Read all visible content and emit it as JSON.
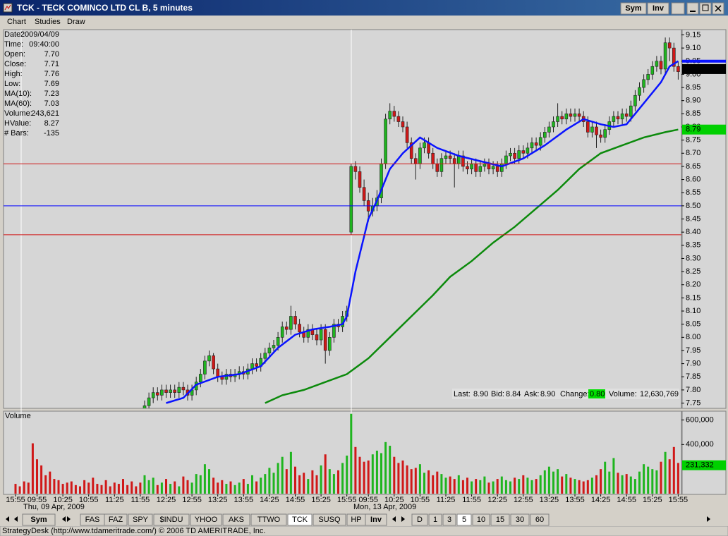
{
  "window": {
    "title": "TCK - TECK COMINCO LTD CL B, 5 minutes",
    "buttons": [
      "Sym",
      "Inv"
    ]
  },
  "menu": [
    "Chart",
    "Studies",
    "Draw"
  ],
  "info_panel": [
    {
      "label": "Date:",
      "value": "2009/04/09"
    },
    {
      "label": "Time:",
      "value": "09:40:00"
    },
    {
      "label": "Open:",
      "value": "7.70"
    },
    {
      "label": "Close:",
      "value": "7.71"
    },
    {
      "label": "High:",
      "value": "7.76"
    },
    {
      "label": "Low:",
      "value": "7.69"
    },
    {
      "label": "MA(10):",
      "value": "7.23",
      "color": "#0000ff"
    },
    {
      "label": "MA(60):",
      "value": "7.03",
      "color": "#008000"
    },
    {
      "label": "Volume:",
      "value": "243,621"
    },
    {
      "label": "HValue:",
      "value": "8.27"
    },
    {
      "label": "# Bars:",
      "value": "-135"
    }
  ],
  "quote": [
    {
      "label": "Last:",
      "value": "8.90"
    },
    {
      "label": "Bid:",
      "value": "8.84"
    },
    {
      "label": "Ask:",
      "value": "8.90"
    },
    {
      "label": "Change:",
      "value": "0.80",
      "color": "#00e000"
    },
    {
      "label": "Volume:",
      "value": "12,630,769"
    }
  ],
  "tabs": [
    "Sym",
    "FAS",
    "FAZ",
    "SPY",
    "$INDU",
    "YHOO",
    "AKS",
    "TTWO",
    "TCK",
    "SUSQ",
    "HP",
    "Inv",
    "D",
    "1",
    "3",
    "5",
    "10",
    "15",
    "30",
    "60"
  ],
  "status_bar": "StrategyDesk (http://www.tdameritrade.com/) © 2006 TD AMERITRADE, Inc.",
  "chart_data": [
    {
      "type": "candlestick",
      "categories": [
        "15:55",
        null,
        null,
        null,
        null,
        "09:55",
        null,
        null,
        null,
        null,
        null,
        "10:25",
        null,
        null,
        null,
        null,
        null,
        "10:55",
        null,
        null,
        null,
        null,
        null,
        "11:25",
        null,
        null,
        null,
        null,
        null,
        "11:55",
        null,
        null,
        null,
        null,
        null,
        "12:25",
        null,
        null,
        null,
        null,
        null,
        "12:55",
        null,
        null,
        null,
        null,
        null,
        "13:25",
        null,
        null,
        null,
        null,
        null,
        "13:55",
        null,
        null,
        null,
        null,
        null,
        "14:25",
        null,
        null,
        null,
        null,
        null,
        "14:55",
        null,
        null,
        null,
        null,
        null,
        "15:25",
        null,
        null,
        null,
        null,
        null,
        "15:55",
        null,
        null,
        null,
        null,
        "09:55",
        null,
        null,
        null,
        null,
        null,
        "10:25",
        null,
        null,
        null,
        null,
        null,
        "10:55",
        null,
        null,
        null,
        null,
        null,
        "11:25",
        null,
        null,
        null,
        null,
        null,
        "11:55",
        null,
        null,
        null,
        null,
        null,
        "12:25",
        null,
        null,
        null,
        null,
        null,
        "12:55",
        null,
        null,
        null,
        null,
        null,
        "13:25",
        null,
        null,
        null,
        null,
        null,
        "13:55",
        null,
        null,
        null,
        null,
        null,
        "14:25",
        null,
        null,
        null,
        null,
        null,
        "14:55",
        null,
        null,
        null,
        null,
        null,
        "15:25",
        null,
        null,
        null,
        null,
        null,
        "15:55"
      ],
      "date_labels": [
        "Thu, 09 Apr, 2009",
        "Mon, 13 Apr, 2009"
      ],
      "open": [
        null,
        null,
        null,
        null,
        null,
        null,
        null,
        null,
        null,
        null,
        null,
        null,
        null,
        null,
        null,
        null,
        null,
        null,
        null,
        null,
        null,
        null,
        null,
        null,
        null,
        null,
        null,
        null,
        null,
        null,
        7.72,
        7.74,
        7.77,
        7.79,
        7.78,
        7.8,
        7.79,
        7.8,
        7.79,
        7.81,
        7.8,
        7.78,
        7.8,
        7.83,
        7.86,
        7.91,
        7.93,
        7.88,
        7.85,
        7.84,
        7.86,
        7.85,
        7.86,
        7.87,
        7.86,
        7.88,
        7.9,
        7.89,
        7.92,
        7.94,
        7.96,
        7.97,
        8.0,
        8.04,
        8.03,
        8.08,
        8.05,
        8.02,
        8.0,
        8.03,
        8.01,
        7.99,
        8.03,
        7.95,
        8.0,
        8.05,
        8.04,
        8.08,
        8.4,
        8.65,
        8.63,
        8.57,
        8.52,
        8.48,
        8.5,
        8.53,
        8.66,
        8.83,
        8.86,
        8.84,
        8.82,
        8.8,
        8.74,
        8.68,
        8.66,
        8.72,
        8.74,
        8.7,
        8.66,
        8.63,
        8.68,
        8.69,
        8.68,
        8.66,
        8.69,
        8.65,
        8.64,
        8.66,
        8.63,
        8.65,
        8.66,
        8.64,
        8.65,
        8.63,
        8.66,
        8.69,
        8.7,
        8.68,
        8.71,
        8.7,
        8.72,
        8.74,
        8.73,
        8.76,
        8.78,
        8.8,
        8.82,
        8.84,
        8.83,
        8.85,
        8.84,
        8.85,
        8.84,
        8.82,
        8.78,
        8.8,
        8.77,
        8.76,
        8.79,
        8.82,
        8.84,
        8.83,
        8.85,
        8.84,
        8.88,
        8.92,
        8.95,
        8.98,
        9.0,
        9.03,
        9.05,
        9.02,
        9.12,
        9.1,
        9.03
      ],
      "high": [
        null,
        null,
        null,
        null,
        null,
        null,
        null,
        null,
        null,
        null,
        null,
        null,
        null,
        null,
        null,
        null,
        null,
        null,
        null,
        null,
        null,
        null,
        null,
        null,
        null,
        null,
        null,
        null,
        null,
        null,
        7.76,
        7.79,
        7.81,
        7.81,
        7.82,
        7.82,
        7.82,
        7.82,
        7.83,
        7.83,
        7.82,
        7.82,
        7.85,
        7.88,
        7.93,
        7.95,
        7.94,
        7.9,
        7.87,
        7.88,
        7.88,
        7.88,
        7.89,
        7.89,
        7.9,
        7.92,
        7.92,
        7.94,
        7.96,
        7.98,
        7.99,
        8.02,
        8.06,
        8.06,
        8.12,
        8.1,
        8.07,
        8.04,
        8.05,
        8.05,
        8.03,
        8.05,
        8.05,
        8.02,
        8.07,
        8.07,
        8.1,
        8.12,
        8.66,
        8.67,
        8.65,
        8.6,
        8.55,
        8.53,
        8.56,
        8.68,
        8.85,
        8.89,
        8.88,
        8.86,
        8.84,
        8.82,
        8.76,
        8.7,
        8.74,
        8.76,
        8.76,
        8.72,
        8.68,
        8.7,
        8.71,
        8.71,
        8.7,
        8.71,
        8.71,
        8.67,
        8.68,
        8.68,
        8.67,
        8.68,
        8.68,
        8.67,
        8.67,
        8.68,
        8.71,
        8.72,
        8.72,
        8.73,
        8.73,
        8.74,
        8.76,
        8.76,
        8.78,
        8.8,
        8.82,
        8.84,
        8.89,
        8.86,
        8.87,
        8.87,
        8.87,
        8.87,
        8.86,
        8.84,
        8.82,
        8.82,
        8.79,
        8.81,
        8.84,
        8.86,
        8.86,
        8.87,
        8.87,
        8.9,
        8.94,
        8.97,
        9.0,
        9.02,
        9.05,
        9.07,
        9.07,
        9.14,
        9.14,
        9.12,
        9.05
      ],
      "low": [
        null,
        null,
        null,
        null,
        null,
        null,
        null,
        null,
        null,
        null,
        null,
        null,
        null,
        null,
        null,
        null,
        null,
        null,
        null,
        null,
        null,
        null,
        null,
        null,
        null,
        null,
        null,
        null,
        null,
        null,
        7.7,
        7.72,
        7.75,
        7.76,
        7.76,
        7.77,
        7.77,
        7.77,
        7.77,
        7.78,
        7.76,
        7.76,
        7.78,
        7.81,
        7.84,
        7.89,
        7.86,
        7.83,
        7.82,
        7.82,
        7.83,
        7.83,
        7.84,
        7.84,
        7.84,
        7.86,
        7.87,
        7.87,
        7.9,
        7.92,
        7.94,
        7.95,
        7.98,
        8.01,
        8.01,
        8.03,
        8.0,
        7.98,
        7.98,
        7.99,
        7.97,
        7.97,
        7.9,
        7.93,
        7.98,
        8.02,
        8.02,
        8.06,
        8.39,
        8.6,
        8.55,
        8.5,
        8.44,
        8.46,
        8.48,
        8.51,
        8.64,
        8.81,
        8.82,
        8.8,
        8.78,
        8.72,
        8.66,
        8.6,
        8.64,
        8.7,
        8.68,
        8.64,
        8.61,
        8.61,
        8.66,
        8.66,
        8.57,
        8.64,
        8.63,
        8.62,
        8.62,
        8.61,
        8.61,
        8.63,
        8.62,
        8.62,
        8.61,
        8.61,
        8.64,
        8.67,
        8.66,
        8.66,
        8.68,
        8.68,
        8.7,
        8.71,
        8.71,
        8.74,
        8.76,
        8.78,
        8.8,
        8.81,
        8.81,
        8.82,
        8.82,
        8.82,
        8.8,
        8.76,
        8.76,
        8.72,
        8.74,
        8.74,
        8.77,
        8.8,
        8.81,
        8.81,
        8.82,
        8.82,
        8.86,
        8.9,
        8.93,
        8.96,
        8.98,
        9.01,
        9.0,
        9.0,
        9.05,
        9.01,
        8.98
      ],
      "close": [
        null,
        null,
        null,
        null,
        null,
        null,
        null,
        null,
        null,
        null,
        null,
        null,
        null,
        null,
        null,
        null,
        null,
        null,
        null,
        null,
        null,
        null,
        null,
        null,
        null,
        null,
        null,
        null,
        null,
        null,
        7.74,
        7.77,
        7.79,
        7.78,
        7.8,
        7.79,
        7.8,
        7.79,
        7.81,
        7.8,
        7.78,
        7.8,
        7.83,
        7.86,
        7.91,
        7.93,
        7.88,
        7.85,
        7.84,
        7.86,
        7.85,
        7.86,
        7.87,
        7.86,
        7.88,
        7.9,
        7.89,
        7.92,
        7.94,
        7.96,
        7.97,
        8.0,
        8.04,
        8.03,
        8.08,
        8.05,
        8.02,
        8.0,
        8.03,
        8.01,
        7.99,
        8.03,
        7.95,
        8.0,
        8.05,
        8.04,
        8.08,
        8.1,
        8.65,
        8.63,
        8.57,
        8.52,
        8.48,
        8.5,
        8.53,
        8.66,
        8.83,
        8.86,
        8.84,
        8.82,
        8.8,
        8.74,
        8.68,
        8.66,
        8.72,
        8.74,
        8.7,
        8.66,
        8.63,
        8.68,
        8.69,
        8.68,
        8.66,
        8.69,
        8.65,
        8.64,
        8.66,
        8.63,
        8.65,
        8.66,
        8.64,
        8.65,
        8.63,
        8.66,
        8.69,
        8.7,
        8.68,
        8.71,
        8.7,
        8.72,
        8.74,
        8.73,
        8.76,
        8.78,
        8.8,
        8.82,
        8.84,
        8.83,
        8.85,
        8.84,
        8.85,
        8.84,
        8.82,
        8.78,
        8.8,
        8.77,
        8.76,
        8.79,
        8.82,
        8.84,
        8.83,
        8.85,
        8.84,
        8.88,
        8.92,
        8.95,
        8.98,
        9.0,
        9.03,
        9.05,
        9.02,
        9.12,
        9.1,
        9.03,
        9.01
      ],
      "up_color": "#1fb51f",
      "down_color": "#d01818",
      "series": [
        {
          "color": "#0a14ff",
          "x": [
            35,
            39,
            42,
            47,
            52,
            57,
            61,
            65,
            69,
            73,
            76,
            77,
            79,
            82,
            84,
            87,
            90,
            94,
            98,
            103,
            108,
            113,
            118,
            123,
            128,
            132,
            136,
            139,
            142,
            146,
            150,
            152,
            154
          ],
          "values": [
            7.75,
            7.77,
            7.82,
            7.85,
            7.86,
            7.89,
            7.96,
            8.01,
            8.03,
            8.04,
            8.05,
            8.08,
            8.25,
            8.45,
            8.52,
            8.64,
            8.7,
            8.76,
            8.72,
            8.69,
            8.67,
            8.65,
            8.68,
            8.73,
            8.79,
            8.83,
            8.81,
            8.8,
            8.81,
            8.89,
            8.97,
            9.03,
            9.05
          ]
        },
        {
          "color": "#0c8a0c",
          "x": [
            58,
            62,
            67,
            72,
            77,
            82,
            87,
            92,
            97,
            101,
            106,
            111,
            116,
            121,
            126,
            131,
            136,
            141,
            146,
            151,
            154
          ],
          "values": [
            7.75,
            7.78,
            7.8,
            7.83,
            7.86,
            7.92,
            8.0,
            8.08,
            8.16,
            8.23,
            8.29,
            8.36,
            8.42,
            8.49,
            8.56,
            8.64,
            8.7,
            8.73,
            8.76,
            8.78,
            8.79
          ]
        }
      ],
      "hlines": [
        {
          "value": 8.66,
          "color": "#d01818"
        },
        {
          "value": 8.5,
          "color": "#0000ff"
        },
        {
          "value": 8.39,
          "color": "#d01818"
        }
      ],
      "price_markers": [
        {
          "value": 9.02,
          "color": "#000000"
        },
        {
          "value": 8.79,
          "color": "#00d000"
        }
      ],
      "ylim": [
        7.73,
        9.17
      ],
      "yticks": [
        7.75,
        {
          "value": 7.8,
          "label": "7.80"
        },
        7.85,
        {
          "value": 7.9,
          "label": "7.90"
        },
        7.95,
        {
          "value": 8,
          "label": "8.00"
        },
        8.05,
        {
          "value": 8.1,
          "label": "8.10"
        },
        8.15,
        {
          "value": 8.2,
          "label": "8.20"
        },
        8.25,
        {
          "value": 8.3,
          "label": "8.30"
        },
        8.35,
        {
          "value": 8.4,
          "label": "8.40"
        },
        8.45,
        {
          "value": 8.5,
          "label": "8.50"
        },
        8.55,
        {
          "value": 8.6,
          "label": "8.60"
        },
        8.65,
        {
          "value": 8.7,
          "label": "8.70"
        },
        8.75,
        {
          "value": 8.8,
          "label": "8.80"
        },
        8.85,
        {
          "value": 8.9,
          "label": "8.90"
        },
        8.95,
        {
          "value": 9,
          "label": "9.00"
        },
        9.05,
        {
          "value": 9.1,
          "label": "9.10"
        },
        9.15
      ]
    },
    {
      "type": "bar",
      "title": "Volume",
      "values": [
        80000,
        60000,
        100000,
        90000,
        410000,
        280000,
        230000,
        150000,
        180000,
        120000,
        110000,
        80000,
        90000,
        100000,
        70000,
        60000,
        110000,
        90000,
        130000,
        80000,
        70000,
        110000,
        60000,
        90000,
        80000,
        120000,
        70000,
        100000,
        60000,
        90000,
        150000,
        110000,
        130000,
        70000,
        90000,
        120000,
        80000,
        100000,
        60000,
        140000,
        110000,
        90000,
        160000,
        150000,
        240000,
        200000,
        130000,
        90000,
        110000,
        80000,
        100000,
        70000,
        90000,
        120000,
        80000,
        150000,
        100000,
        130000,
        160000,
        210000,
        170000,
        250000,
        300000,
        200000,
        340000,
        220000,
        150000,
        170000,
        120000,
        190000,
        150000,
        230000,
        320000,
        200000,
        160000,
        190000,
        250000,
        310000,
        650000,
        380000,
        300000,
        260000,
        270000,
        320000,
        350000,
        330000,
        420000,
        390000,
        300000,
        250000,
        270000,
        230000,
        200000,
        210000,
        240000,
        170000,
        190000,
        150000,
        180000,
        160000,
        130000,
        140000,
        120000,
        150000,
        110000,
        130000,
        100000,
        120000,
        110000,
        140000,
        90000,
        100000,
        120000,
        140000,
        110000,
        100000,
        130000,
        120000,
        150000,
        130000,
        110000,
        120000,
        150000,
        190000,
        220000,
        180000,
        200000,
        140000,
        160000,
        130000,
        120000,
        110000,
        100000,
        110000,
        130000,
        150000,
        200000,
        260000,
        180000,
        290000,
        170000,
        150000,
        160000,
        140000,
        120000,
        180000,
        240000,
        220000,
        200000,
        190000,
        260000,
        340000,
        280000,
        380000,
        250000
      ],
      "marker": {
        "value": 231332,
        "label": "231,332",
        "color": "#00d000"
      },
      "ylim": [
        0,
        660000
      ],
      "yticks": [
        {
          "value": 400000,
          "label": "400,000"
        },
        {
          "value": 600000,
          "label": "600,000"
        }
      ]
    }
  ]
}
